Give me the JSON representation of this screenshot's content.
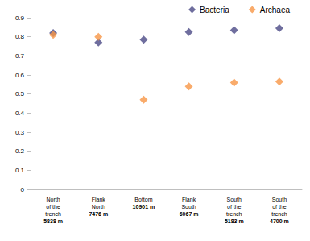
{
  "chart_data": {
    "type": "scatter",
    "categories": [
      "North\nof the\ntrench\n5838 m",
      "Flank\nNorth\n7476 m",
      "Bottom\n10901 m",
      "Flank\nSouth\n6067 m",
      "South\nof the\ntrench\n5183 m",
      "South\nof the\ntrench\n4700 m"
    ],
    "series": [
      {
        "name": "Bacteria",
        "color": "#4b4a86",
        "marker": "diamond",
        "values": [
          0.82,
          0.77,
          0.785,
          0.825,
          0.835,
          0.845
        ]
      },
      {
        "name": "Archaea",
        "color": "#f79646",
        "marker": "diamond",
        "values": [
          0.81,
          0.8,
          0.47,
          0.54,
          0.56,
          0.565
        ]
      }
    ],
    "ylim": [
      0,
      0.9
    ],
    "yticks": [
      0,
      0.1,
      0.2,
      0.3,
      0.4,
      0.5,
      0.6,
      0.7,
      0.8,
      0.9
    ],
    "grid": false,
    "legend": "top"
  }
}
